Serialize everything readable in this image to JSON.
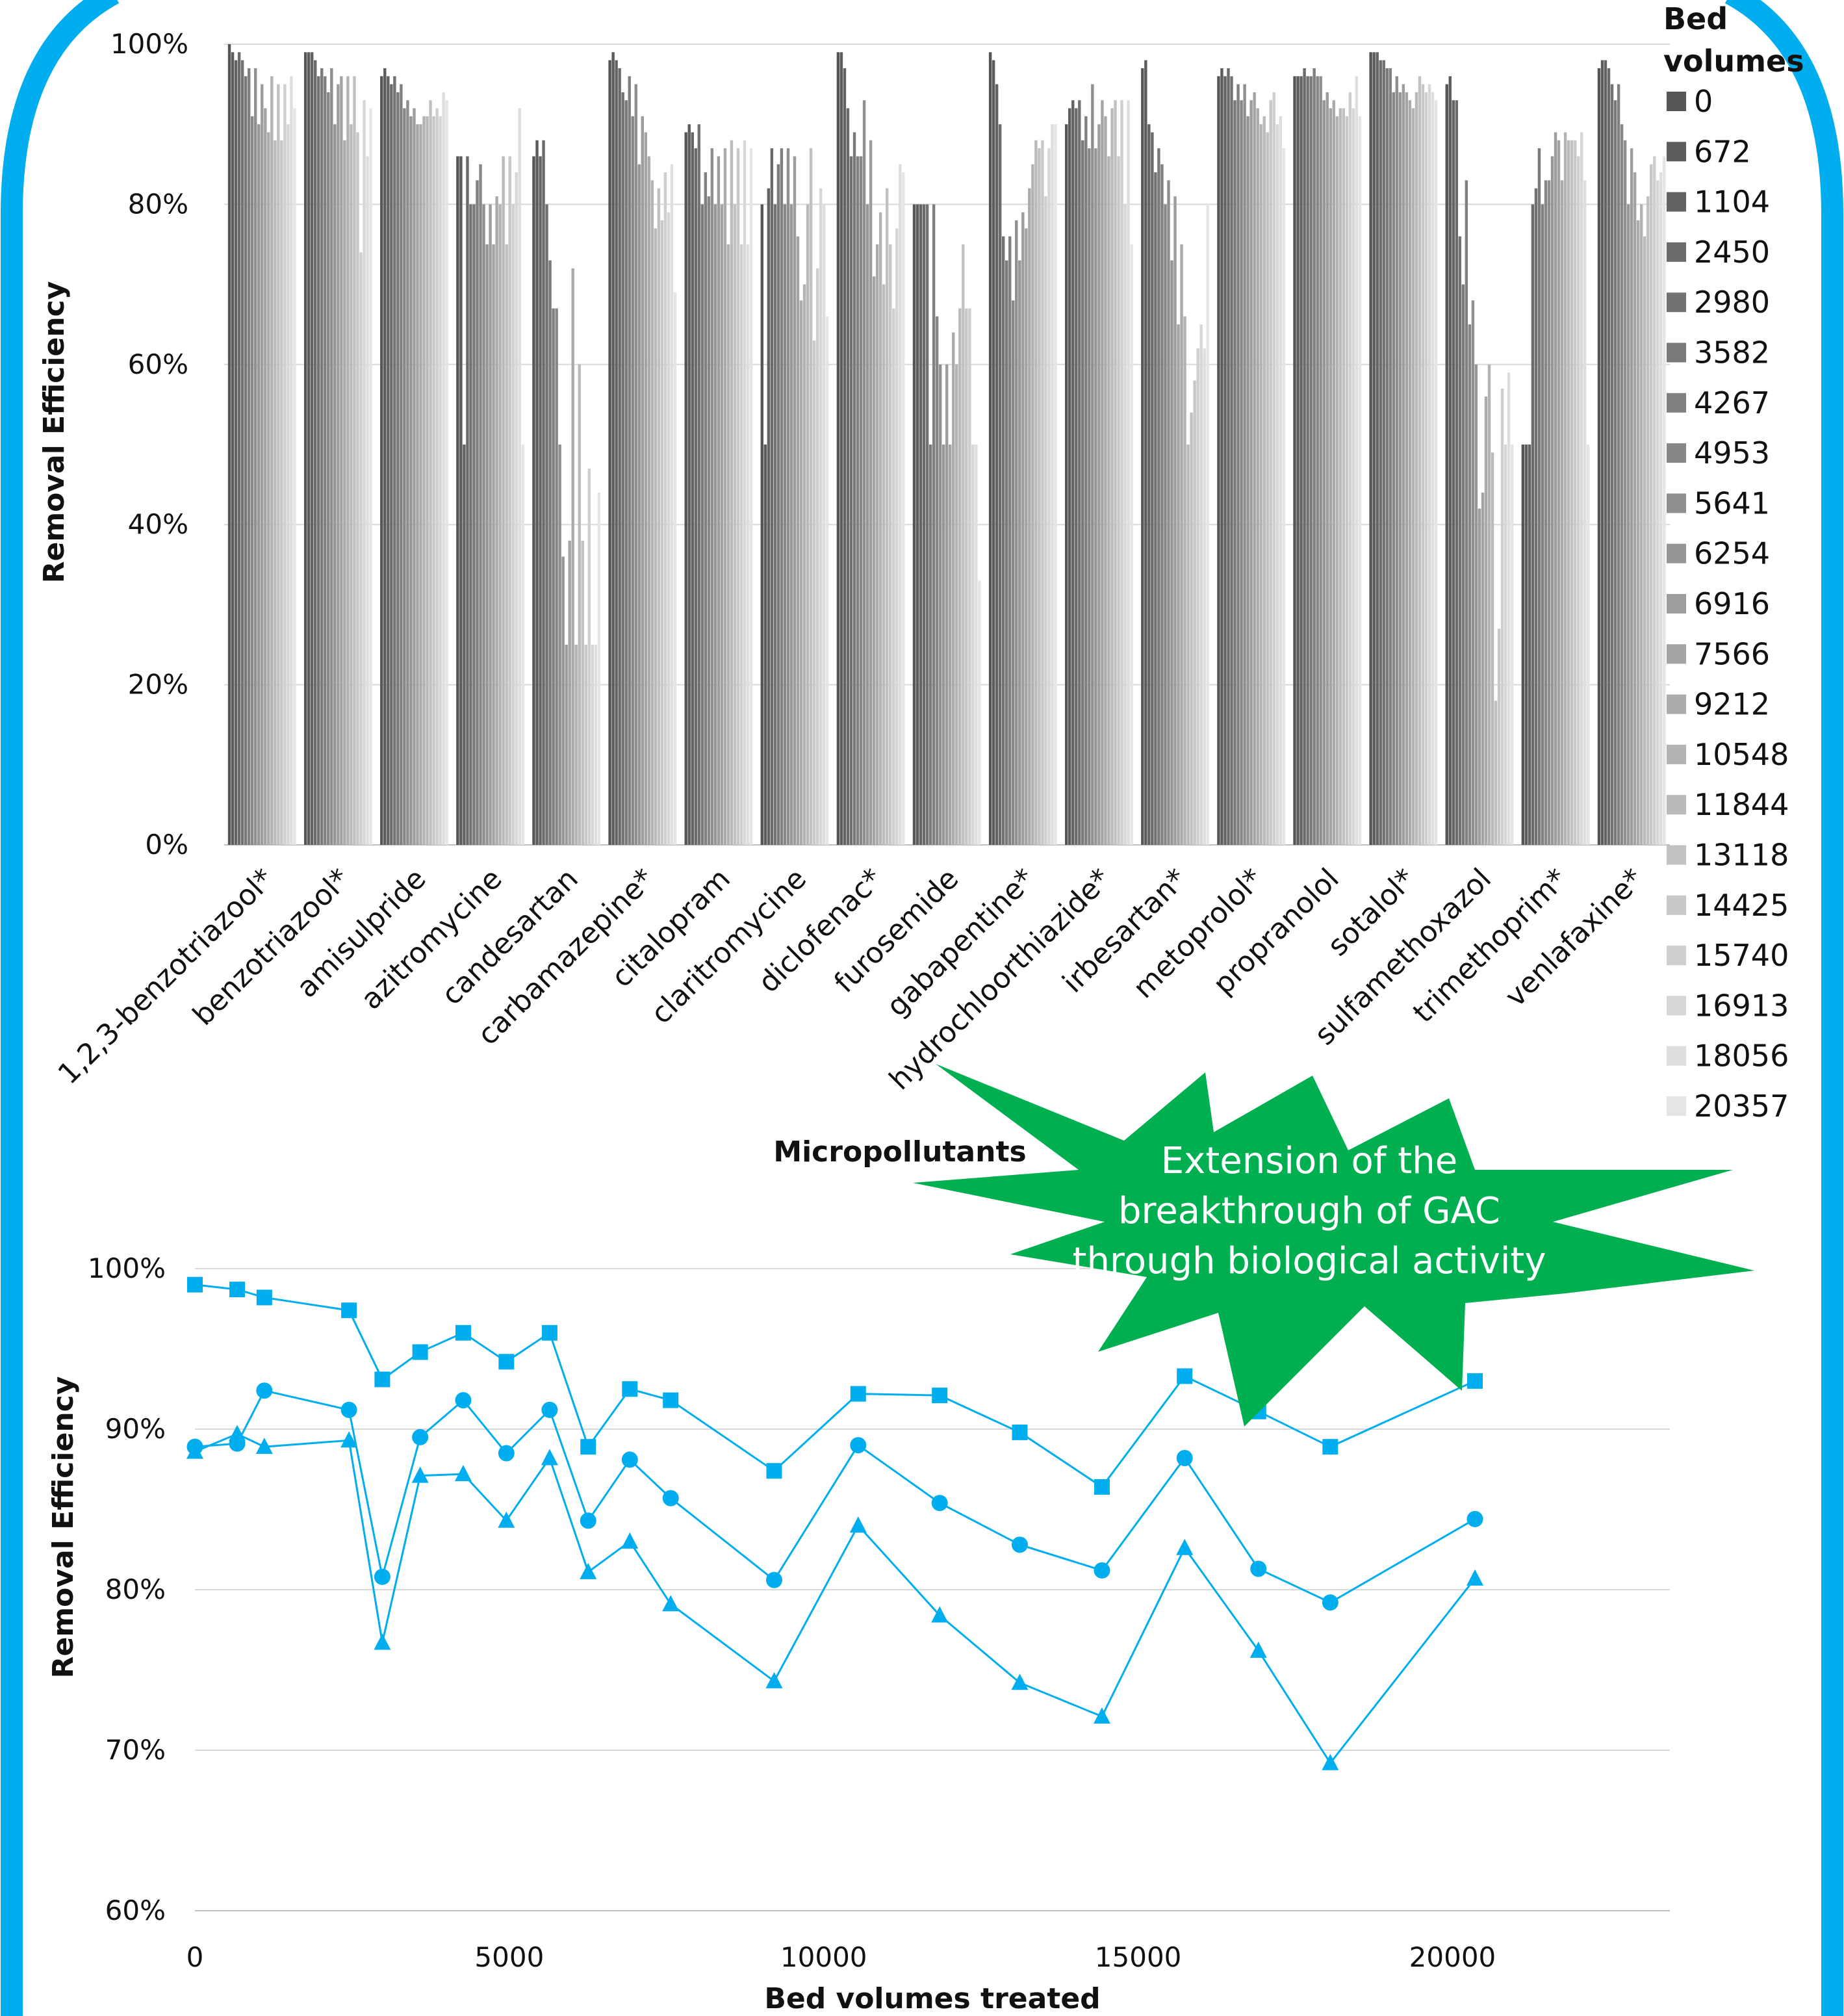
{
  "frame_color": "#00aeef",
  "callout": {
    "lines": [
      "Extension of the",
      "breakthrough of GAC",
      "through biological activity"
    ],
    "color": "#00b050"
  },
  "chart_data": [
    {
      "type": "bar",
      "xlabel": "Micropollutants",
      "ylabel": "Removal Efficiency",
      "ylim": [
        0,
        1
      ],
      "yticks": [
        "0%",
        "20%",
        "40%",
        "60%",
        "80%",
        "100%"
      ],
      "grid": true,
      "legend": {
        "title_lines": [
          "Bed",
          "volumes"
        ],
        "position": "right"
      },
      "categories": [
        "1,2,3-benzotriazool*",
        "benzotriazool*",
        "amisulpride",
        "azitromycine",
        "candesartan",
        "carbamazepine*",
        "citalopram",
        "claritromycine",
        "diclofenac*",
        "furosemide",
        "gabapentine*",
        "hydrochloorthiazide*",
        "irbesartan*",
        "metoprolol*",
        "propranolol",
        "sotalol*",
        "sulfamethoxazol",
        "trimethoprim*",
        "venlafaxine*"
      ],
      "series": [
        {
          "name": "0",
          "values": [
            1.0,
            0.99,
            0.96,
            0.86,
            0.86,
            0.98,
            0.89,
            0.8,
            0.99,
            0.8,
            0.99,
            0.9,
            0.97,
            0.96,
            0.96,
            0.99,
            0.95,
            0.5,
            0.97
          ]
        },
        {
          "name": "672",
          "values": [
            0.99,
            0.99,
            0.97,
            0.86,
            0.88,
            0.99,
            0.9,
            0.5,
            0.99,
            0.8,
            0.98,
            0.92,
            0.98,
            0.97,
            0.96,
            0.99,
            0.96,
            0.5,
            0.98
          ]
        },
        {
          "name": "1104",
          "values": [
            0.98,
            0.99,
            0.96,
            0.5,
            0.86,
            0.98,
            0.89,
            0.82,
            0.97,
            0.8,
            0.95,
            0.93,
            0.9,
            0.96,
            0.96,
            0.99,
            0.93,
            0.5,
            0.98
          ]
        },
        {
          "name": "2450",
          "values": [
            0.99,
            0.98,
            0.95,
            0.86,
            0.88,
            0.97,
            0.87,
            0.87,
            0.92,
            0.8,
            0.9,
            0.92,
            0.89,
            0.97,
            0.97,
            0.98,
            0.93,
            0.8,
            0.97
          ]
        },
        {
          "name": "2980",
          "values": [
            0.98,
            0.96,
            0.96,
            0.8,
            0.8,
            0.94,
            0.9,
            0.8,
            0.86,
            0.8,
            0.76,
            0.93,
            0.84,
            0.96,
            0.96,
            0.98,
            0.76,
            0.82,
            0.95
          ]
        },
        {
          "name": "3582",
          "values": [
            0.96,
            0.97,
            0.94,
            0.8,
            0.73,
            0.93,
            0.8,
            0.85,
            0.89,
            0.5,
            0.73,
            0.88,
            0.87,
            0.93,
            0.96,
            0.97,
            0.7,
            0.87,
            0.93
          ]
        },
        {
          "name": "4267",
          "values": [
            0.97,
            0.96,
            0.95,
            0.83,
            0.67,
            0.96,
            0.84,
            0.87,
            0.86,
            0.8,
            0.76,
            0.91,
            0.85,
            0.95,
            0.97,
            0.97,
            0.83,
            0.8,
            0.95
          ]
        },
        {
          "name": "4953",
          "values": [
            0.91,
            0.94,
            0.92,
            0.85,
            0.67,
            0.91,
            0.81,
            0.8,
            0.86,
            0.66,
            0.68,
            0.87,
            0.8,
            0.93,
            0.96,
            0.94,
            0.65,
            0.83,
            0.9
          ]
        },
        {
          "name": "5641",
          "values": [
            0.97,
            0.97,
            0.93,
            0.8,
            0.5,
            0.95,
            0.87,
            0.87,
            0.93,
            0.6,
            0.78,
            0.95,
            0.83,
            0.95,
            0.96,
            0.96,
            0.68,
            0.83,
            0.88
          ]
        },
        {
          "name": "6254",
          "values": [
            0.9,
            0.9,
            0.91,
            0.75,
            0.36,
            0.85,
            0.8,
            0.8,
            0.8,
            0.5,
            0.73,
            0.87,
            0.73,
            0.91,
            0.93,
            0.94,
            0.6,
            0.86,
            0.8
          ]
        },
        {
          "name": "6916",
          "values": [
            0.95,
            0.95,
            0.92,
            0.8,
            0.25,
            0.91,
            0.86,
            0.86,
            0.88,
            0.6,
            0.79,
            0.9,
            0.81,
            0.93,
            0.94,
            0.95,
            0.42,
            0.89,
            0.87
          ]
        },
        {
          "name": "7566",
          "values": [
            0.92,
            0.96,
            0.9,
            0.75,
            0.38,
            0.89,
            0.8,
            0.76,
            0.71,
            0.5,
            0.77,
            0.93,
            0.65,
            0.94,
            0.92,
            0.94,
            0.44,
            0.88,
            0.84
          ]
        },
        {
          "name": "9212",
          "values": [
            0.89,
            0.88,
            0.9,
            0.81,
            0.72,
            0.86,
            0.87,
            0.68,
            0.75,
            0.64,
            0.82,
            0.91,
            0.75,
            0.92,
            0.93,
            0.93,
            0.56,
            0.83,
            0.78
          ]
        },
        {
          "name": "10548",
          "values": [
            0.96,
            0.96,
            0.91,
            0.8,
            0.25,
            0.83,
            0.75,
            0.7,
            0.79,
            0.6,
            0.85,
            0.86,
            0.66,
            0.9,
            0.91,
            0.92,
            0.6,
            0.89,
            0.8
          ]
        },
        {
          "name": "11844",
          "values": [
            0.88,
            0.9,
            0.91,
            0.86,
            0.6,
            0.77,
            0.88,
            0.8,
            0.7,
            0.67,
            0.88,
            0.92,
            0.5,
            0.91,
            0.92,
            0.94,
            0.49,
            0.88,
            0.76
          ]
        },
        {
          "name": "13118",
          "values": [
            0.95,
            0.96,
            0.93,
            0.75,
            0.38,
            0.82,
            0.8,
            0.87,
            0.82,
            0.75,
            0.87,
            0.93,
            0.54,
            0.89,
            0.92,
            0.96,
            0.18,
            0.88,
            0.81
          ]
        },
        {
          "name": "14425",
          "values": [
            0.88,
            0.89,
            0.91,
            0.86,
            0.25,
            0.78,
            0.87,
            0.63,
            0.75,
            0.67,
            0.88,
            0.86,
            0.58,
            0.93,
            0.91,
            0.95,
            0.27,
            0.88,
            0.85
          ]
        },
        {
          "name": "15740",
          "values": [
            0.95,
            0.74,
            0.92,
            0.8,
            0.47,
            0.84,
            0.75,
            0.72,
            0.67,
            0.67,
            0.81,
            0.93,
            0.62,
            0.94,
            0.94,
            0.94,
            0.57,
            0.86,
            0.86
          ]
        },
        {
          "name": "16913",
          "values": [
            0.9,
            0.93,
            0.91,
            0.84,
            0.25,
            0.79,
            0.88,
            0.82,
            0.77,
            0.5,
            0.87,
            0.8,
            0.65,
            0.9,
            0.92,
            0.95,
            0.5,
            0.89,
            0.83
          ]
        },
        {
          "name": "18056",
          "values": [
            0.96,
            0.86,
            0.94,
            0.92,
            0.25,
            0.85,
            0.75,
            0.8,
            0.85,
            0.5,
            0.9,
            0.93,
            0.62,
            0.91,
            0.96,
            0.94,
            0.59,
            0.83,
            0.84
          ]
        },
        {
          "name": "20357",
          "values": [
            0.92,
            0.92,
            0.93,
            0.5,
            0.44,
            0.69,
            0.87,
            0.66,
            0.84,
            0.33,
            0.9,
            0.75,
            0.8,
            0.87,
            0.91,
            0.93,
            0.5,
            0.5,
            0.86
          ]
        }
      ]
    },
    {
      "type": "line",
      "xlabel": "Bed volumes treated",
      "ylabel": "Removal Efficiency",
      "xlim": [
        0,
        20357
      ],
      "ylim": [
        0.6,
        1.0
      ],
      "xticks": [
        "0",
        "5000",
        "10000",
        "15000",
        "20000"
      ],
      "yticks": [
        "60%",
        "70%",
        "80%",
        "90%",
        "100%"
      ],
      "grid": true,
      "line_color": "#00aeef",
      "x": [
        0,
        672,
        1104,
        2450,
        2980,
        3582,
        4267,
        4953,
        5641,
        6254,
        6916,
        7566,
        9212,
        10548,
        11844,
        13118,
        14425,
        15740,
        16913,
        18056,
        20357
      ],
      "series": [
        {
          "marker": "square",
          "values": [
            0.99,
            0.987,
            0.982,
            0.974,
            0.931,
            0.948,
            0.96,
            0.942,
            0.96,
            0.889,
            0.925,
            0.918,
            0.874,
            0.922,
            0.921,
            0.898,
            0.864,
            0.933,
            0.911,
            0.889,
            0.93
          ]
        },
        {
          "marker": "circle",
          "values": [
            0.889,
            0.891,
            0.924,
            0.912,
            0.808,
            0.895,
            0.918,
            0.885,
            0.912,
            0.843,
            0.881,
            0.857,
            0.806,
            0.89,
            0.854,
            0.828,
            0.812,
            0.882,
            0.813,
            0.792,
            0.844
          ]
        },
        {
          "marker": "triangle",
          "values": [
            0.886,
            0.897,
            0.889,
            0.893,
            0.767,
            0.871,
            0.872,
            0.843,
            0.882,
            0.811,
            0.83,
            0.791,
            0.743,
            0.84,
            0.784,
            0.742,
            0.721,
            0.826,
            0.762,
            0.692,
            0.807
          ]
        }
      ]
    }
  ]
}
